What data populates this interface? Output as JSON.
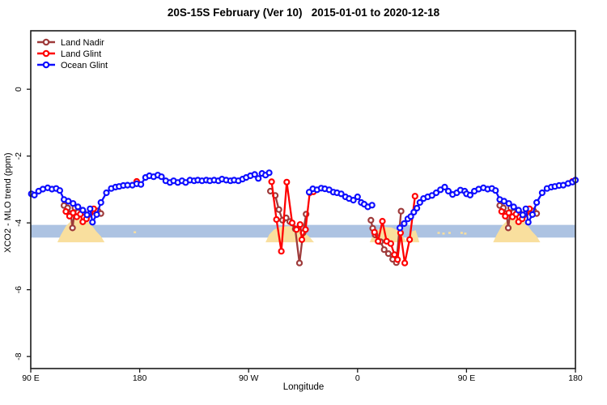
{
  "chart_data": {
    "type": "line",
    "title": "20S-15S February (Ver 10)   2015-01-01 to 2020-12-18",
    "xlabel": "Longitude",
    "ylabel": "XCO2 - MLO trend (ppm)",
    "grid": false,
    "legend_position": "top-left",
    "x_axis": {
      "min": 90,
      "max": 540,
      "ticks": [
        {
          "v": 90,
          "label": "90 E"
        },
        {
          "v": 180,
          "label": "180"
        },
        {
          "v": 270,
          "label": "90 W"
        },
        {
          "v": 360,
          "label": "0"
        },
        {
          "v": 450,
          "label": "90 E"
        },
        {
          "v": 540,
          "label": "180"
        }
      ]
    },
    "y_axis": {
      "min": -8.36,
      "max": 1.75,
      "ticks": [
        {
          "v": 0,
          "label": "0"
        },
        {
          "v": -2,
          "label": "-2"
        },
        {
          "v": -4,
          "label": "-4"
        },
        {
          "v": -6,
          "label": "-6"
        },
        {
          "v": -8,
          "label": "-8"
        }
      ]
    },
    "reference_band": {
      "from": -4.06,
      "to": -4.44,
      "color": "#adc3e2"
    },
    "topography": {
      "color": "#f9df9e",
      "mounds": [
        [
          [
            112,
            -4.58
          ],
          [
            115,
            -4.35
          ],
          [
            119,
            -4.1
          ],
          [
            123,
            -3.95
          ],
          [
            127,
            -3.88
          ],
          [
            132,
            -3.85
          ],
          [
            136,
            -3.9
          ],
          [
            140,
            -4.05
          ],
          [
            144,
            -4.25
          ],
          [
            148,
            -4.4
          ],
          [
            151,
            -4.58
          ]
        ],
        [
          [
            284,
            -4.58
          ],
          [
            287,
            -4.35
          ],
          [
            291,
            -4.2
          ],
          [
            296,
            -4.12
          ],
          [
            303,
            -4.1
          ],
          [
            310,
            -4.14
          ],
          [
            316,
            -4.28
          ],
          [
            321,
            -4.45
          ],
          [
            324,
            -4.58
          ]
        ],
        [
          [
            370,
            -4.58
          ],
          [
            373,
            -4.35
          ],
          [
            377,
            -4.2
          ],
          [
            382,
            -4.12
          ],
          [
            388,
            -4.14
          ],
          [
            393,
            -4.22
          ],
          [
            397,
            -4.38
          ],
          [
            401,
            -4.58
          ]
        ],
        [
          [
            403,
            -4.58
          ],
          [
            405,
            -4.25
          ],
          [
            408,
            -4.22
          ],
          [
            410,
            -4.45
          ],
          [
            411,
            -4.58
          ]
        ],
        [
          [
            472,
            -4.58
          ],
          [
            475,
            -4.35
          ],
          [
            479,
            -4.1
          ],
          [
            483,
            -3.95
          ],
          [
            487,
            -3.88
          ],
          [
            492,
            -3.85
          ],
          [
            496,
            -3.9
          ],
          [
            500,
            -4.05
          ],
          [
            504,
            -4.25
          ],
          [
            508,
            -4.4
          ],
          [
            511,
            -4.58
          ]
        ]
      ],
      "islands": [
        [
          176,
          -4.28
        ],
        [
          427,
          -4.3
        ],
        [
          431,
          -4.32
        ],
        [
          436,
          -4.3
        ],
        [
          446,
          -4.3
        ],
        [
          449,
          -4.32
        ]
      ]
    },
    "series": [
      {
        "name": "Land Nadir",
        "color": "#9e3a3a",
        "segments": [
          [
            [
              117.5,
              -3.48
            ],
            [
              120.5,
              -3.55
            ],
            [
              123,
              -3.72
            ],
            [
              124.5,
              -4.15
            ],
            [
              126.5,
              -3.55
            ],
            [
              129,
              -3.68
            ],
            [
              133.5,
              -3.68
            ],
            [
              137,
              -3.78
            ],
            [
              141,
              -3.65
            ],
            [
              145.5,
              -3.64
            ],
            [
              148,
              -3.72
            ]
          ],
          [
            [
              288,
              -3.05
            ],
            [
              292,
              -3.18
            ],
            [
              295,
              -3.6
            ],
            [
              298,
              -3.92
            ],
            [
              301,
              -3.85
            ],
            [
              304,
              -3.96
            ],
            [
              308.5,
              -4.18
            ],
            [
              312,
              -5.2
            ],
            [
              315,
              -4.3
            ],
            [
              317.5,
              -3.74
            ]
          ],
          [
            [
              371,
              -3.92
            ],
            [
              372.5,
              -4.16
            ],
            [
              374.5,
              -4.36
            ],
            [
              379,
              -4.56
            ],
            [
              382,
              -4.8
            ],
            [
              385.5,
              -4.92
            ],
            [
              389,
              -5.09
            ],
            [
              392,
              -5.19
            ],
            [
              396,
              -3.65
            ]
          ],
          [
            [
              477.5,
              -3.48
            ],
            [
              480.5,
              -3.55
            ],
            [
              483,
              -3.72
            ],
            [
              484.5,
              -4.15
            ],
            [
              486.5,
              -3.55
            ],
            [
              489,
              -3.68
            ],
            [
              493.5,
              -3.68
            ],
            [
              497,
              -3.78
            ],
            [
              501,
              -3.65
            ],
            [
              505.5,
              -3.64
            ],
            [
              508,
              -3.72
            ]
          ]
        ]
      },
      {
        "name": "Land Glint",
        "color": "#ff0000",
        "segments": [
          [
            [
              119,
              -3.66
            ],
            [
              122,
              -3.8
            ],
            [
              125,
              -3.7
            ],
            [
              128,
              -3.82
            ],
            [
              131,
              -3.74
            ],
            [
              133,
              -3.97
            ],
            [
              136,
              -3.88
            ],
            [
              139,
              -3.72
            ],
            [
              142,
              -3.58
            ]
          ],
          [
            [
              177.5,
              -2.76
            ]
          ],
          [
            [
              289,
              -2.77
            ],
            [
              293,
              -3.9
            ],
            [
              297,
              -4.85
            ],
            [
              301.5,
              -2.78
            ],
            [
              306,
              -4.0
            ],
            [
              309.5,
              -4.2
            ],
            [
              312.5,
              -4.05
            ],
            [
              314,
              -4.5
            ],
            [
              317,
              -4.2
            ],
            [
              320.5,
              -3.1
            ],
            [
              323.5,
              -3.07
            ]
          ],
          [
            [
              374,
              -4.28
            ],
            [
              377,
              -4.55
            ],
            [
              380.5,
              -3.95
            ],
            [
              384,
              -4.55
            ],
            [
              387.5,
              -4.62
            ],
            [
              390.5,
              -4.95
            ],
            [
              393,
              -5.1
            ],
            [
              395.5,
              -4.3
            ],
            [
              399,
              -5.2
            ],
            [
              403,
              -4.5
            ],
            [
              407.5,
              -3.2
            ]
          ],
          [
            [
              479,
              -3.66
            ],
            [
              482,
              -3.8
            ],
            [
              485,
              -3.7
            ],
            [
              488,
              -3.82
            ],
            [
              491,
              -3.74
            ],
            [
              493,
              -3.97
            ],
            [
              496,
              -3.88
            ],
            [
              499,
              -3.72
            ],
            [
              502,
              -3.58
            ]
          ],
          [
            [
              537.5,
              -2.76
            ]
          ]
        ]
      },
      {
        "name": "Ocean Glint",
        "color": "#0d0dff",
        "segments": [
          [
            [
              90.5,
              -3.13
            ],
            [
              93,
              -3.17
            ],
            [
              96.5,
              -3.05
            ],
            [
              100,
              -2.99
            ],
            [
              104,
              -2.95
            ],
            [
              107.5,
              -2.99
            ],
            [
              111,
              -2.97
            ],
            [
              114,
              -3.03
            ],
            [
              117.5,
              -3.3
            ],
            [
              121,
              -3.35
            ],
            [
              125,
              -3.42
            ],
            [
              129,
              -3.52
            ],
            [
              133,
              -3.62
            ],
            [
              136.5,
              -3.76
            ],
            [
              139,
              -3.58
            ],
            [
              141,
              -3.98
            ],
            [
              144.5,
              -3.75
            ],
            [
              148,
              -3.39
            ],
            [
              152.5,
              -3.1
            ],
            [
              156.5,
              -2.97
            ],
            [
              160,
              -2.93
            ],
            [
              163,
              -2.91
            ],
            [
              166.5,
              -2.88
            ],
            [
              170,
              -2.87
            ],
            [
              174,
              -2.87
            ],
            [
              177.5,
              -2.83
            ],
            [
              181,
              -2.85
            ],
            [
              184.8,
              -2.64
            ],
            [
              188,
              -2.59
            ],
            [
              191.5,
              -2.62
            ],
            [
              195,
              -2.57
            ],
            [
              198,
              -2.62
            ],
            [
              201.5,
              -2.74
            ],
            [
              205,
              -2.79
            ],
            [
              208,
              -2.74
            ],
            [
              211.5,
              -2.79
            ],
            [
              215,
              -2.74
            ],
            [
              218,
              -2.79
            ],
            [
              221.5,
              -2.72
            ],
            [
              225,
              -2.74
            ],
            [
              228,
              -2.72
            ],
            [
              231.5,
              -2.74
            ],
            [
              235,
              -2.72
            ],
            [
              238,
              -2.74
            ],
            [
              241.5,
              -2.72
            ],
            [
              245,
              -2.74
            ],
            [
              248,
              -2.69
            ],
            [
              251.5,
              -2.72
            ],
            [
              255,
              -2.74
            ],
            [
              258,
              -2.72
            ],
            [
              261.5,
              -2.74
            ],
            [
              265,
              -2.69
            ],
            [
              268,
              -2.64
            ],
            [
              271.5,
              -2.59
            ],
            [
              275,
              -2.55
            ],
            [
              278,
              -2.67
            ],
            [
              281,
              -2.52
            ],
            [
              284,
              -2.57
            ],
            [
              287,
              -2.5
            ]
          ],
          [
            [
              320,
              -3.08
            ],
            [
              323,
              -2.98
            ],
            [
              326.5,
              -3.01
            ],
            [
              330,
              -2.96
            ],
            [
              333,
              -2.98
            ],
            [
              336.5,
              -3.01
            ],
            [
              340,
              -3.08
            ],
            [
              343,
              -3.1
            ],
            [
              346.5,
              -3.13
            ],
            [
              350,
              -3.22
            ],
            [
              353,
              -3.27
            ],
            [
              356.5,
              -3.32
            ],
            [
              360,
              -3.22
            ],
            [
              363,
              -3.39
            ],
            [
              365.5,
              -3.44
            ],
            [
              368.5,
              -3.52
            ],
            [
              372,
              -3.47
            ]
          ],
          [
            [
              395,
              -4.15
            ],
            [
              398.5,
              -4.02
            ],
            [
              401.5,
              -3.88
            ],
            [
              404,
              -3.81
            ],
            [
              406.5,
              -3.68
            ],
            [
              409,
              -3.56
            ],
            [
              411.5,
              -3.39
            ],
            [
              414.5,
              -3.27
            ],
            [
              418,
              -3.22
            ],
            [
              421.5,
              -3.18
            ],
            [
              425,
              -3.1
            ],
            [
              428.5,
              -3.01
            ],
            [
              432,
              -2.93
            ],
            [
              435,
              -3.05
            ],
            [
              438.5,
              -3.15
            ],
            [
              442,
              -3.1
            ],
            [
              445,
              -3.02
            ],
            [
              448.5,
              -3.05
            ],
            [
              450,
              -3.13
            ],
            [
              453,
              -3.17
            ],
            [
              456.5,
              -3.05
            ],
            [
              460,
              -2.99
            ],
            [
              464,
              -2.95
            ],
            [
              467.5,
              -2.99
            ],
            [
              471,
              -2.97
            ],
            [
              474,
              -3.03
            ],
            [
              477.5,
              -3.3
            ],
            [
              481,
              -3.35
            ],
            [
              485,
              -3.42
            ],
            [
              489,
              -3.52
            ],
            [
              493,
              -3.62
            ],
            [
              496.5,
              -3.76
            ],
            [
              499,
              -3.58
            ],
            [
              501,
              -3.98
            ],
            [
              504.5,
              -3.75
            ],
            [
              508,
              -3.39
            ],
            [
              512.5,
              -3.1
            ],
            [
              516.5,
              -2.97
            ],
            [
              520,
              -2.93
            ],
            [
              523,
              -2.91
            ],
            [
              526.5,
              -2.88
            ],
            [
              530,
              -2.87
            ],
            [
              534,
              -2.82
            ],
            [
              537.5,
              -2.78
            ],
            [
              540,
              -2.72
            ]
          ]
        ]
      }
    ]
  }
}
